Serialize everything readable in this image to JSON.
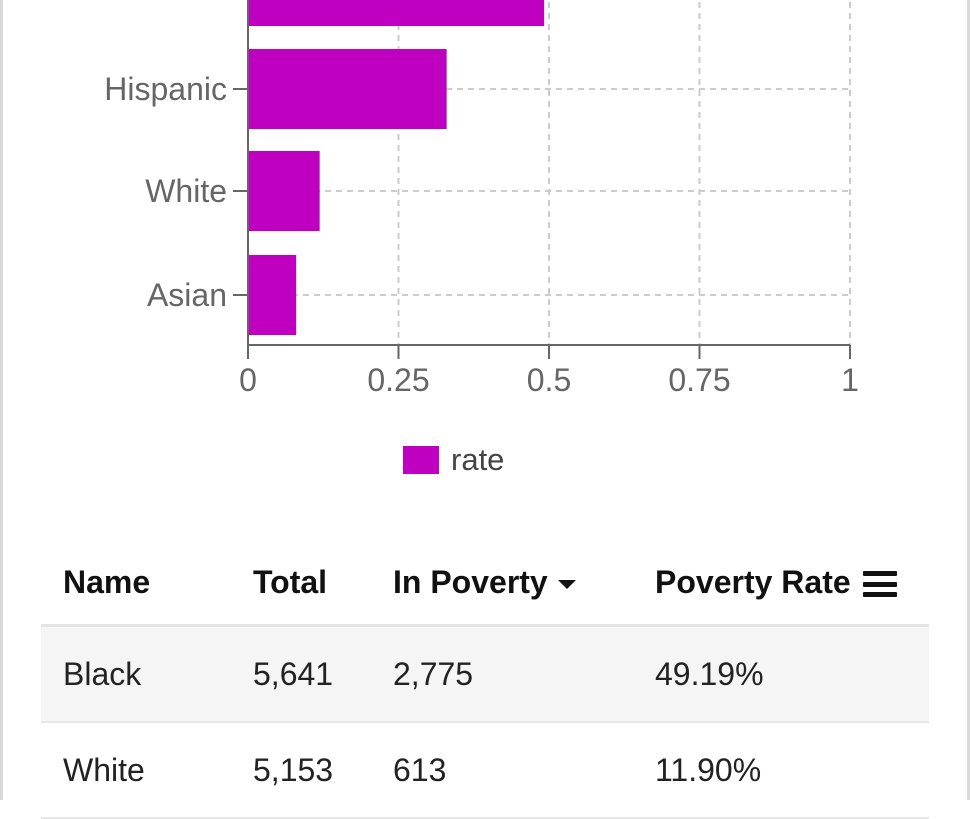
{
  "chart_data": {
    "type": "bar",
    "orientation": "horizontal",
    "categories": [
      "Black",
      "Hispanic",
      "White",
      "Asian"
    ],
    "series": [
      {
        "name": "rate",
        "values": [
          0.4919,
          0.33,
          0.119,
          0.08
        ]
      }
    ],
    "xlim": [
      0,
      1
    ],
    "xticks": [
      "0",
      "0.25",
      "0.5",
      "0.75",
      "1"
    ],
    "grid": true,
    "legend": "bottom-center",
    "color": "#c000c0"
  },
  "legend": {
    "label": "rate"
  },
  "table": {
    "columns": [
      "Name",
      "Total",
      "In Poverty",
      "Poverty Rate"
    ],
    "rows": [
      [
        "Black",
        "5,641",
        "2,775",
        "49.19%"
      ],
      [
        "White",
        "5,153",
        "613",
        "11.90%"
      ]
    ]
  },
  "icons": {
    "sort": "caret-down-icon",
    "menu": "menu-icon"
  }
}
